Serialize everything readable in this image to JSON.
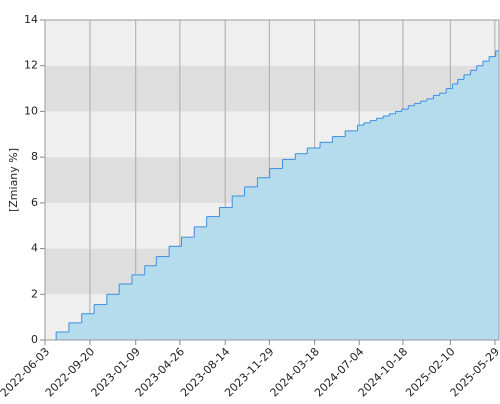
{
  "chart_data": {
    "type": "step-area",
    "y_label": "[Zmiany %]",
    "x": [
      "2022-06-03",
      "2022-06-30",
      "2022-07-31",
      "2022-08-31",
      "2022-09-30",
      "2022-10-31",
      "2022-11-30",
      "2022-12-31",
      "2023-01-31",
      "2023-02-28",
      "2023-03-31",
      "2023-04-30",
      "2023-05-31",
      "2023-06-30",
      "2023-07-31",
      "2023-08-31",
      "2023-09-30",
      "2023-10-31",
      "2023-11-30",
      "2023-12-31",
      "2024-01-31",
      "2024-02-29",
      "2024-03-31",
      "2024-04-30",
      "2024-05-31",
      "2024-06-30",
      "2024-07-15",
      "2024-07-31",
      "2024-08-15",
      "2024-08-31",
      "2024-09-15",
      "2024-09-30",
      "2024-10-15",
      "2024-10-31",
      "2024-11-15",
      "2024-11-30",
      "2024-12-15",
      "2024-12-31",
      "2025-01-15",
      "2025-01-31",
      "2025-02-15",
      "2025-02-28",
      "2025-03-15",
      "2025-03-31",
      "2025-04-15",
      "2025-04-30",
      "2025-05-15",
      "2025-05-31",
      "2025-06-08"
    ],
    "values": [
      0,
      0.35,
      0.75,
      1.15,
      1.55,
      2.0,
      2.45,
      2.85,
      3.25,
      3.65,
      4.1,
      4.5,
      4.95,
      5.4,
      5.8,
      6.3,
      6.7,
      7.1,
      7.5,
      7.9,
      8.15,
      8.4,
      8.65,
      8.9,
      9.15,
      9.4,
      9.5,
      9.6,
      9.7,
      9.8,
      9.9,
      10.0,
      10.1,
      10.25,
      10.35,
      10.45,
      10.55,
      10.7,
      10.8,
      11.0,
      11.2,
      11.4,
      11.6,
      11.8,
      12.0,
      12.2,
      12.4,
      12.65,
      12.95
    ],
    "line_color": "#3d8fe0",
    "fill_color": "#b5dcec",
    "band_colors": [
      "#efefef",
      "#dedede"
    ],
    "xlim": [
      "2022-06-03",
      "2025-06-08"
    ],
    "xticks": [
      "2022-06-03",
      "2022-09-20",
      "2023-01-09",
      "2023-04-26",
      "2023-08-14",
      "2023-11-29",
      "2024-03-18",
      "2024-07-04",
      "2024-10-18",
      "2025-02-10",
      "2025-05-29"
    ],
    "ylim": [
      0,
      14
    ],
    "yticks": [
      0,
      2,
      4,
      6,
      8,
      10,
      12,
      14
    ],
    "grid": true
  }
}
